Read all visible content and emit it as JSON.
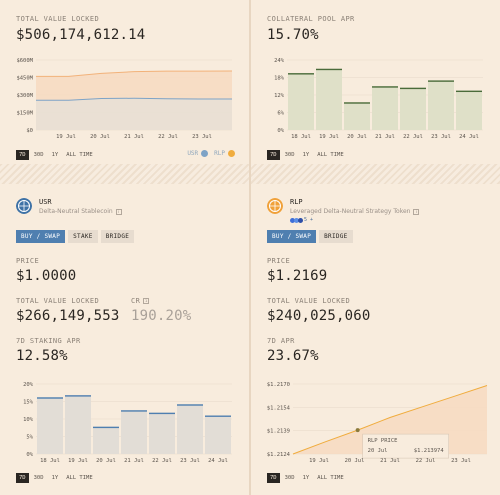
{
  "tvl_panel": {
    "label": "TOTAL VALUE LOCKED",
    "value": "$506,174,612.14",
    "y_ticks": [
      "$600M",
      "$450M",
      "$300M",
      "$150M",
      "$0"
    ],
    "x_ticks": [
      "19 Jul",
      "20 Jul",
      "21 Jul",
      "22 Jul",
      "23 Jul"
    ],
    "ranges": [
      "7D",
      "30D",
      "1Y",
      "ALL TIME"
    ],
    "legend": [
      {
        "label": "USR",
        "color": "#7ea3c6"
      },
      {
        "label": "RLP",
        "color": "#f0ac3d"
      }
    ]
  },
  "apr_panel": {
    "label": "COLLATERAL POOL APR",
    "value": "15.70%",
    "y_ticks": [
      "24%",
      "18%",
      "12%",
      "6%",
      "0%"
    ],
    "x_ticks": [
      "18 Jul",
      "19 Jul",
      "20 Jul",
      "21 Jul",
      "22 Jul",
      "23 Jul",
      "24 Jul"
    ],
    "ranges": [
      "7D",
      "30D",
      "1Y",
      "ALL TIME"
    ]
  },
  "usr_panel": {
    "name": "USR",
    "description": "Delta-Neutral Stablecoin",
    "chips_suffix": "5 +",
    "buttons": {
      "buy": "BUY / SWAP",
      "stake": "STAKE",
      "bridge": "BRIDGE"
    },
    "price_label": "PRICE",
    "price": "$1.0000",
    "tvl_label": "TOTAL VALUE LOCKED",
    "tvl": "$266,149,553",
    "cr_label": "CR",
    "cr_value": "190.20%",
    "staking_label": "7D STAKING APR",
    "staking_value": "12.58%",
    "y_ticks": [
      "20%",
      "15%",
      "10%",
      "5%",
      "0%"
    ],
    "x_ticks": [
      "18 Jul",
      "19 Jul",
      "20 Jul",
      "21 Jul",
      "22 Jul",
      "23 Jul",
      "24 Jul"
    ],
    "ranges": [
      "7D",
      "30D",
      "1Y",
      "ALL TIME"
    ]
  },
  "rlp_panel": {
    "name": "RLP",
    "description": "Leveraged Delta-Neutral Strategy Token",
    "chips_suffix": "5 +",
    "buttons": {
      "buy": "BUY / SWAP",
      "bridge": "BRIDGE"
    },
    "price_label": "PRICE",
    "price": "$1.2169",
    "tvl_label": "TOTAL VALUE LOCKED",
    "tvl": "$240,025,060",
    "apr_label": "7D APR",
    "apr_value": "23.67%",
    "y_ticks": [
      "$1.2170",
      "$1.2154",
      "$1.2139",
      "$1.2124"
    ],
    "x_ticks": [
      "19 Jul",
      "20 Jul",
      "21 Jul",
      "22 Jul",
      "23 Jul"
    ],
    "tooltip": {
      "title": "RLP PRICE",
      "date": "20 Jul",
      "value": "$1.213974"
    },
    "ranges": [
      "7D",
      "30D",
      "1Y",
      "ALL TIME"
    ]
  },
  "colors": {
    "background": "#f8ecdd",
    "rlp_orange": "#f0ac3d",
    "usr_blue": "#4f7fb0",
    "apr_bar_green": "#dfe0c8",
    "apr_bar_top": "#4a6b3a",
    "staking_bar": "#e2ddd6",
    "staking_bar_top": "#4f7fb0"
  },
  "chart_data": [
    {
      "type": "area",
      "title": "TOTAL VALUE LOCKED",
      "x": [
        "18 Jul",
        "19 Jul",
        "20 Jul",
        "21 Jul",
        "22 Jul",
        "23 Jul",
        "24 Jul"
      ],
      "series": [
        {
          "name": "USR",
          "values": [
            255,
            255,
            270,
            272,
            268,
            266,
            266
          ]
        },
        {
          "name": "RLP",
          "values": [
            460,
            460,
            485,
            500,
            505,
            505,
            506
          ]
        }
      ],
      "ylim": [
        0,
        600
      ],
      "ylabel": "",
      "xlabel": ""
    },
    {
      "type": "bar",
      "title": "COLLATERAL POOL APR",
      "categories": [
        "18 Jul",
        "19 Jul",
        "20 Jul",
        "21 Jul",
        "22 Jul",
        "23 Jul",
        "24 Jul"
      ],
      "values": [
        19.5,
        21,
        9.5,
        15,
        14.5,
        17,
        13.5
      ],
      "ylim": [
        0,
        24
      ]
    },
    {
      "type": "bar",
      "title": "7D STAKING APR",
      "categories": [
        "18 Jul",
        "19 Jul",
        "20 Jul",
        "21 Jul",
        "22 Jul",
        "23 Jul",
        "24 Jul"
      ],
      "values": [
        16.2,
        16.8,
        7.8,
        12.5,
        11.8,
        14.2,
        11.0
      ],
      "ylim": [
        0,
        20
      ]
    },
    {
      "type": "area",
      "title": "7D APR",
      "x": [
        "18 Jul",
        "19 Jul",
        "20 Jul",
        "21 Jul",
        "22 Jul",
        "23 Jul",
        "24 Jul"
      ],
      "series": [
        {
          "values": [
            1.2124,
            1.2132,
            1.21397,
            1.2148,
            1.2155,
            1.2162,
            1.2169
          ]
        }
      ],
      "ylim": [
        1.2124,
        1.217
      ]
    }
  ]
}
